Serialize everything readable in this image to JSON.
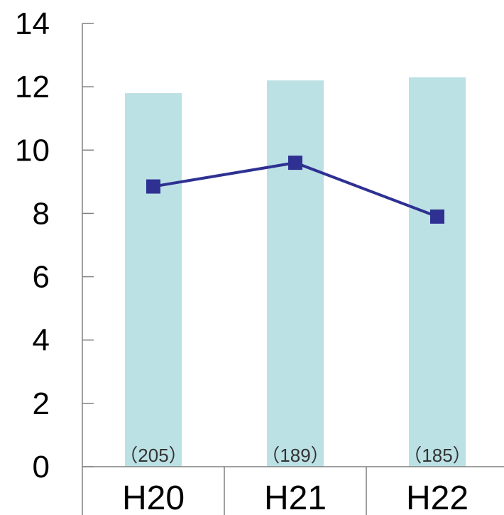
{
  "chart_data": {
    "type": "bar",
    "categories": [
      "H20",
      "H21",
      "H22"
    ],
    "series": [
      {
        "kind": "bar",
        "values": [
          11.8,
          12.2,
          12.3
        ],
        "color": "#bce1e4"
      },
      {
        "kind": "line",
        "values": [
          8.85,
          9.6,
          7.9
        ],
        "color": "#2e3192"
      }
    ],
    "bar_labels": [
      "（205）",
      "（189）",
      "（185）"
    ],
    "y_ticks": [
      "0",
      "2",
      "4",
      "6",
      "8",
      "10",
      "12",
      "14"
    ],
    "ylim": [
      0,
      14
    ],
    "grid": false,
    "title": "",
    "xlabel": "",
    "ylabel": ""
  }
}
